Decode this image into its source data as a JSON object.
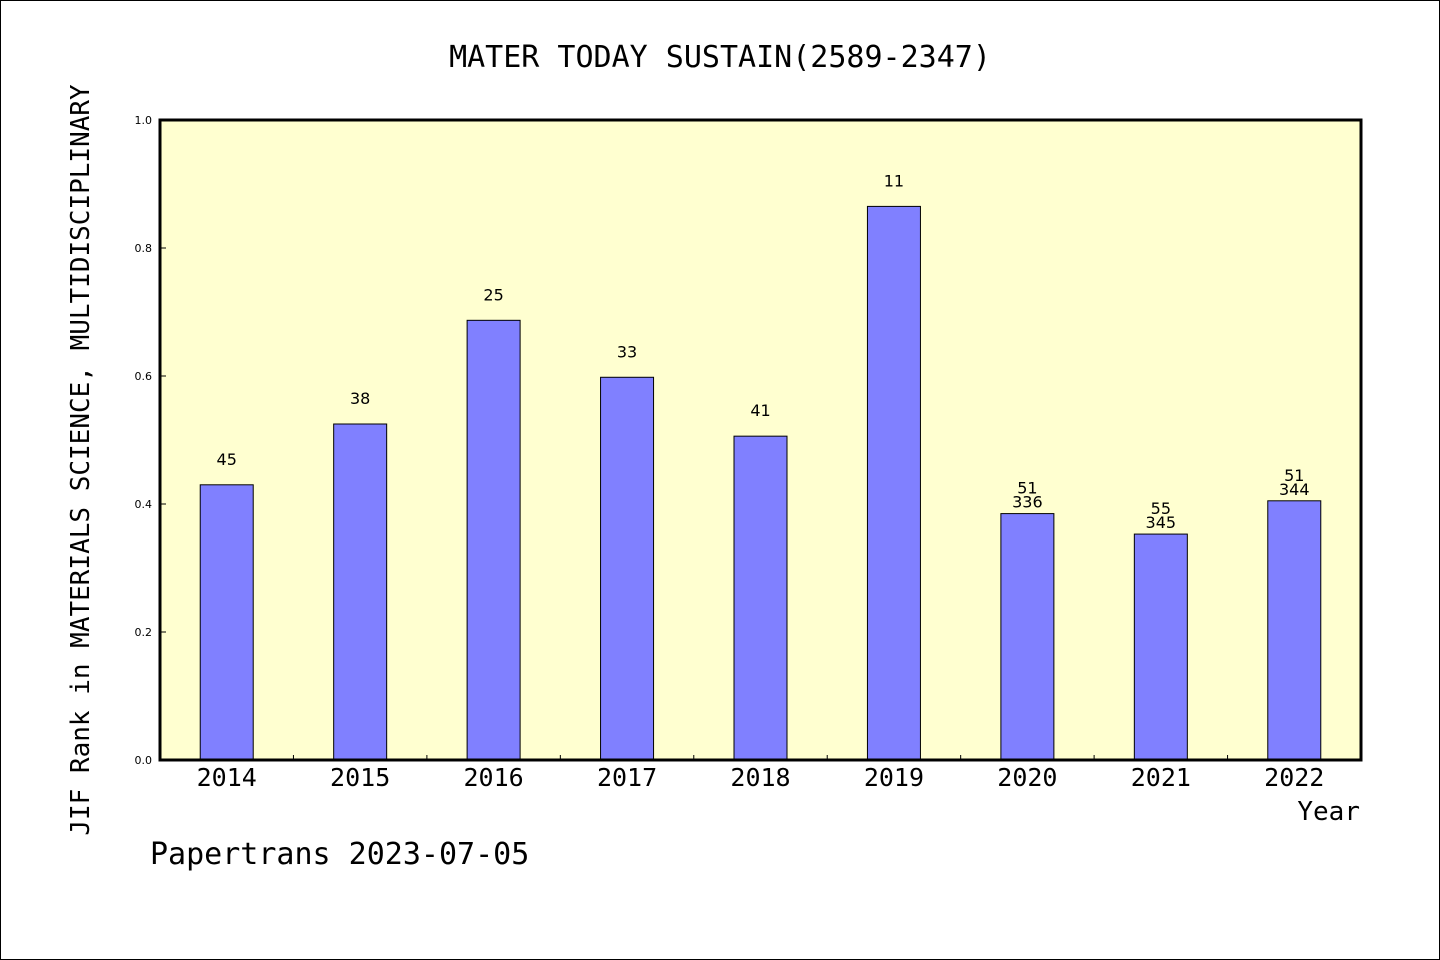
{
  "chart_data": {
    "type": "bar",
    "title": "MATER TODAY SUSTAIN(2589-2347)",
    "xlabel": "Year",
    "ylabel": "JIF Rank in MATERIALS SCIENCE, MULTIDISCIPLINARY",
    "ylim": [
      0,
      1.0
    ],
    "yticks": [
      "0.0",
      "0.2",
      "0.4",
      "0.6",
      "0.8",
      "1.0"
    ],
    "categories": [
      "2014",
      "2015",
      "2016",
      "2017",
      "2018",
      "2019",
      "2020",
      "2021",
      "2022"
    ],
    "values": [
      0.43,
      0.525,
      0.687,
      0.598,
      0.506,
      0.865,
      0.385,
      0.353,
      0.405
    ],
    "rank_labels": [
      "45",
      "38",
      "25",
      "33",
      "41",
      "11",
      "51",
      "55",
      "51"
    ],
    "total_labels": [
      "",
      "",
      "",
      "",
      "",
      "",
      "336",
      "345",
      "344"
    ],
    "grid": false,
    "colors": {
      "plot_background": "#ffffd0",
      "bar_fill": "#8080ff",
      "bar_stroke": "#000000"
    }
  },
  "footer": "Papertrans 2023-07-05"
}
